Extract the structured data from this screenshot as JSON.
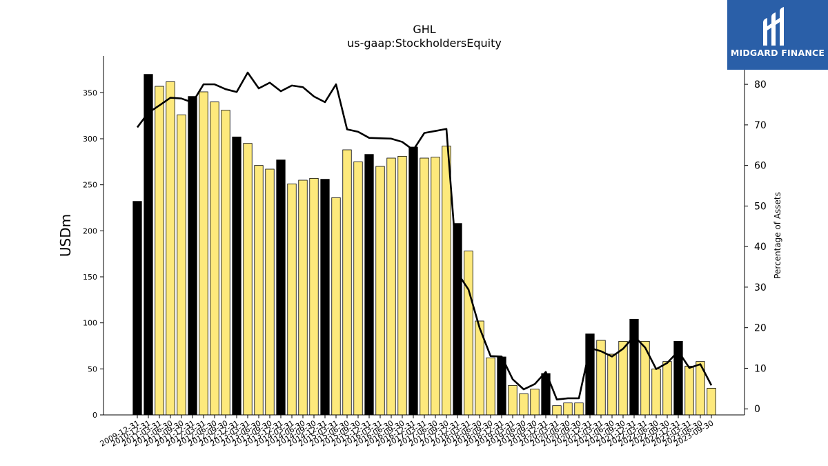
{
  "brand": {
    "logo_text": "MIDGARD FINANCE",
    "logo_icon": "midgard-m-logo-icon",
    "background": "#2a5fa8"
  },
  "chart_data": {
    "type": "bar",
    "title": "GHL",
    "subtitle": "us-gaap:StockholdersEquity",
    "ylabel": "USDm",
    "y2label": "Percentage of Assets",
    "ylim": [
      0,
      390
    ],
    "y2lim": [
      -1.5,
      87
    ],
    "yticks": [
      0,
      50,
      100,
      150,
      200,
      250,
      300,
      350
    ],
    "y2ticks": [
      0,
      10,
      20,
      30,
      40,
      50,
      60,
      70,
      80
    ],
    "categories": [
      "2009-12-31",
      "2010-12-31",
      "2011-03-31",
      "2011-06-30",
      "2011-09-30",
      "2011-12-31",
      "2012-03-31",
      "2012-06-30",
      "2012-09-30",
      "2012-12-31",
      "2013-03-31",
      "2013-06-30",
      "2013-09-30",
      "2013-12-31",
      "2014-03-31",
      "2014-06-30",
      "2014-09-30",
      "2014-12-31",
      "2015-03-31",
      "2015-06-30",
      "2015-09-30",
      "2015-12-31",
      "2016-03-31",
      "2016-06-30",
      "2016-09-30",
      "2016-12-31",
      "2017-03-31",
      "2017-06-30",
      "2017-09-30",
      "2017-12-31",
      "2018-03-31",
      "2018-06-30",
      "2018-09-30",
      "2018-12-31",
      "2019-03-31",
      "2019-06-30",
      "2019-09-30",
      "2019-12-31",
      "2020-03-31",
      "2020-06-30",
      "2020-09-30",
      "2020-12-31",
      "2021-03-31",
      "2021-06-30",
      "2021-09-30",
      "2021-12-31",
      "2022-03-31",
      "2022-06-30",
      "2022-09-30",
      "2022-12-31",
      "2023-03-31",
      "2023-06-30",
      "2023-09-30"
    ],
    "series": [
      {
        "type": "bar",
        "values": [
          232,
          370,
          357,
          362,
          326,
          346,
          351,
          340,
          331,
          302,
          295,
          271,
          267,
          277,
          251,
          255,
          257,
          256,
          236,
          288,
          275,
          283,
          270,
          279,
          281,
          291,
          279,
          280,
          292,
          208,
          178,
          102,
          62,
          63,
          32,
          23,
          28,
          45,
          10,
          13,
          13,
          88,
          81,
          66,
          80,
          104,
          80,
          50,
          58,
          80,
          53,
          58,
          29
        ],
        "colors": {
          "annual": "#000000",
          "quarterly": "#fde97c"
        },
        "annual_flags": [
          1,
          1,
          0,
          0,
          0,
          1,
          0,
          0,
          0,
          1,
          0,
          0,
          0,
          1,
          0,
          0,
          0,
          1,
          0,
          0,
          0,
          1,
          0,
          0,
          0,
          1,
          0,
          0,
          0,
          1,
          0,
          0,
          0,
          1,
          0,
          0,
          0,
          1,
          0,
          0,
          0,
          1,
          0,
          0,
          0,
          1,
          0,
          0,
          0,
          1,
          0,
          0,
          0
        ]
      },
      {
        "type": "line",
        "axis": "right",
        "color": "#000000",
        "values": [
          69.4,
          73,
          74.8,
          76.7,
          76.5,
          75.5,
          80,
          80,
          78.8,
          78.1,
          82.9,
          79,
          80.4,
          78.3,
          79.7,
          79.3,
          77,
          75.6,
          80,
          68.9,
          68.3,
          66.8,
          66.7,
          66.6,
          65.8,
          63.8,
          68,
          68.5,
          69,
          33.5,
          29.4,
          20,
          13,
          12.9,
          7.3,
          4.8,
          6.1,
          9.1,
          2.3,
          2.6,
          2.6,
          15,
          14.2,
          12.9,
          14.8,
          17.9,
          15.1,
          9.8,
          11.3,
          14.2,
          10.1,
          11,
          5.8
        ]
      }
    ]
  }
}
